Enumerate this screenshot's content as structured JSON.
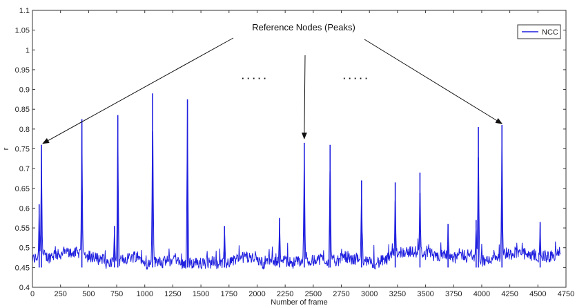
{
  "chart_data": {
    "type": "line",
    "xlabel": "Number of frame",
    "ylabel": "r",
    "xlim": [
      0,
      4750
    ],
    "ylim": [
      0.4,
      1.1
    ],
    "xticks": [
      "0",
      "250",
      "500",
      "750",
      "1000",
      "1250",
      "1500",
      "1750",
      "2000",
      "2250",
      "2500",
      "2750",
      "3000",
      "3250",
      "3500",
      "3750",
      "4000",
      "4250",
      "4500",
      "4750"
    ],
    "yticks": [
      "0.4",
      "0.45",
      "0.5",
      "0.55",
      "0.6",
      "0.65",
      "0.7",
      "0.75",
      "0.8",
      "0.85",
      "0.9",
      "0.95",
      "1",
      "1.05",
      "1.1"
    ],
    "legend": {
      "position": "top-right",
      "entries": [
        "NCC"
      ]
    },
    "series": [
      {
        "name": "NCC",
        "color": "#1f1fdf",
        "baseline_range": [
          0.45,
          0.51
        ],
        "peaks": [
          {
            "x": 60,
            "y": 0.61
          },
          {
            "x": 80,
            "y": 0.76
          },
          {
            "x": 440,
            "y": 0.825
          },
          {
            "x": 730,
            "y": 0.555
          },
          {
            "x": 760,
            "y": 0.835
          },
          {
            "x": 1070,
            "y": 0.89
          },
          {
            "x": 1380,
            "y": 0.875
          },
          {
            "x": 1710,
            "y": 0.555
          },
          {
            "x": 2200,
            "y": 0.575
          },
          {
            "x": 2420,
            "y": 0.765
          },
          {
            "x": 2650,
            "y": 0.76
          },
          {
            "x": 2930,
            "y": 0.67
          },
          {
            "x": 3230,
            "y": 0.665
          },
          {
            "x": 3450,
            "y": 0.69
          },
          {
            "x": 3700,
            "y": 0.56
          },
          {
            "x": 3950,
            "y": 0.57
          },
          {
            "x": 3970,
            "y": 0.805
          },
          {
            "x": 4180,
            "y": 0.81
          },
          {
            "x": 4520,
            "y": 0.565
          }
        ]
      }
    ],
    "annotations": {
      "title_text": "Reference Nodes (Peaks)",
      "dots_left": "· · · · ·",
      "dots_right": "· · · · ·",
      "arrow_targets": [
        {
          "x": 80,
          "y": 0.76
        },
        {
          "x": 2420,
          "y": 0.765
        },
        {
          "x": 4180,
          "y": 0.81
        }
      ]
    }
  }
}
